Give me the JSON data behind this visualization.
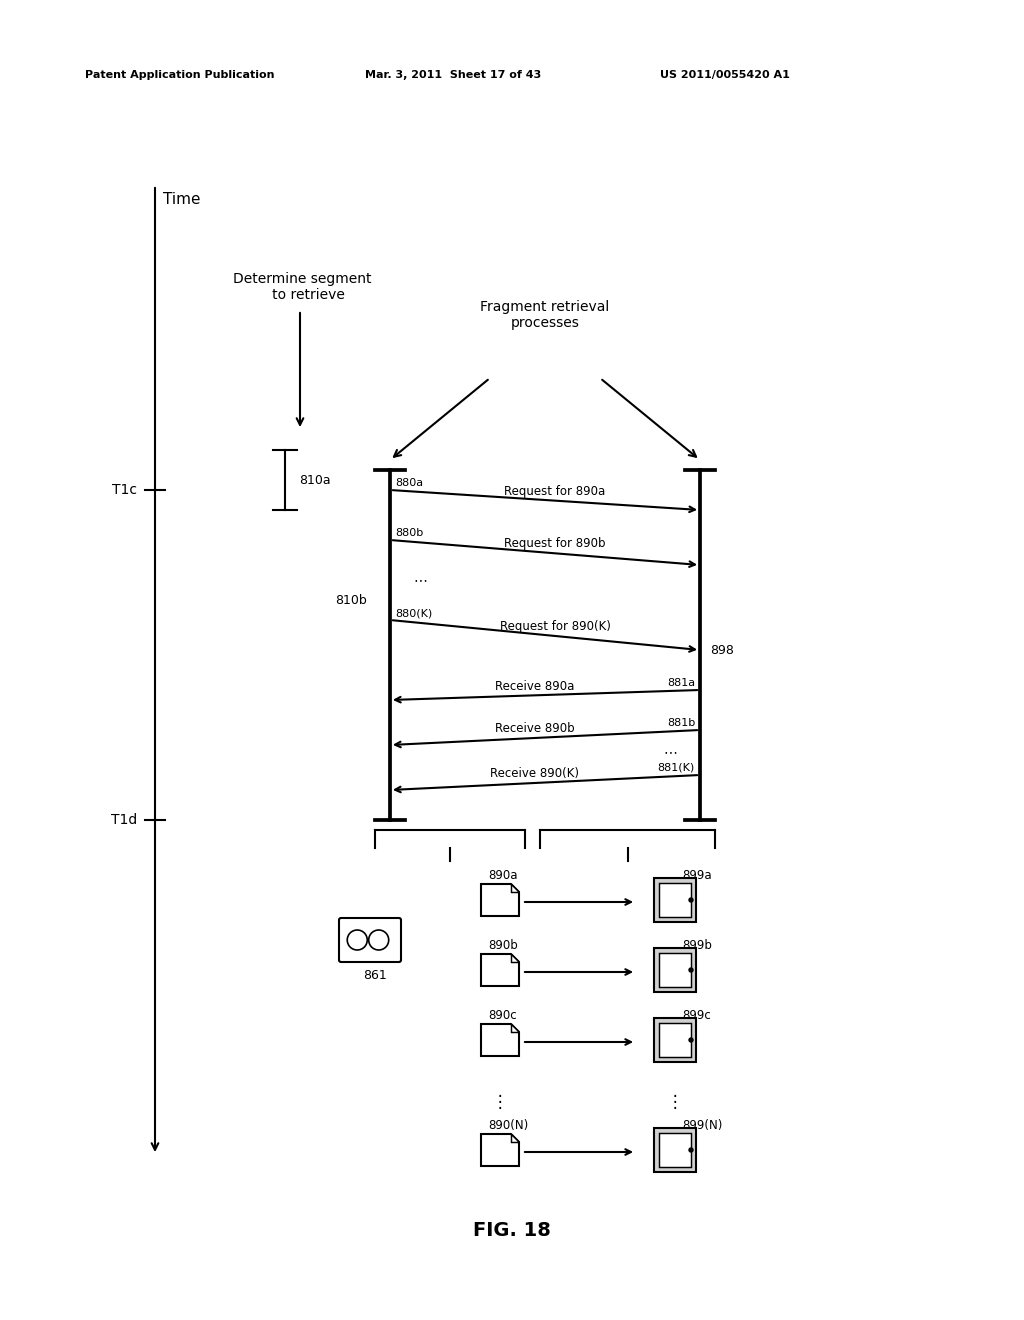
{
  "bg_color": "#ffffff",
  "header_left": "Patent Application Publication",
  "header_mid": "Mar. 3, 2011  Sheet 17 of 43",
  "header_right": "US 2011/0055420 A1",
  "fig_label": "FIG. 18",
  "time_label": "Time",
  "t1c_label": "T1c",
  "t1d_label": "T1d",
  "determine_label": "Determine segment\n   to retrieve",
  "fragment_label": "Fragment retrieval\nprocesses",
  "label_810a": "810a",
  "label_810b": "810b",
  "label_898": "898",
  "label_861": "861",
  "req_labels": [
    "880a",
    "880b",
    "880(K)"
  ],
  "req_texts": [
    "Request for 890a",
    "Request for 890b",
    "Request for 890(K)"
  ],
  "rec_labels": [
    "881a",
    "881b",
    "881(K)"
  ],
  "rec_texts": [
    "Receive 890a",
    "Receive 890b",
    "Receive 890(K)"
  ],
  "frag_labels": [
    "890a",
    "890b",
    "890c",
    "890(N)"
  ],
  "serv_labels": [
    "899a",
    "899b",
    "899c",
    "899(N)"
  ]
}
